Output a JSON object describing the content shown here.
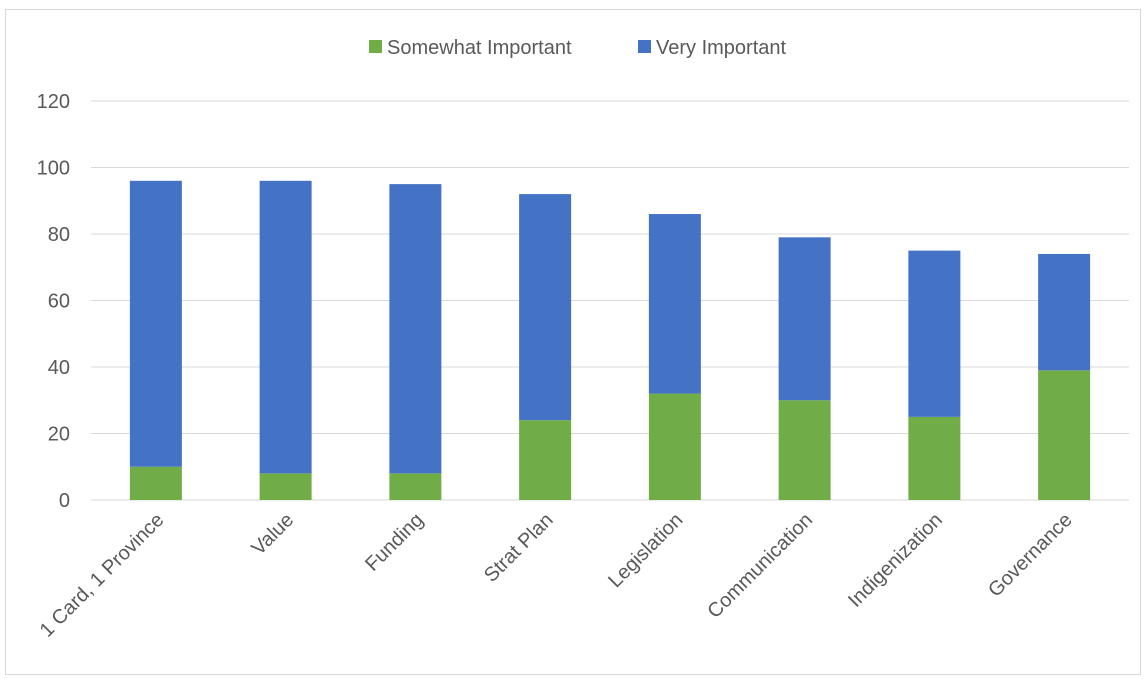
{
  "chart_data": {
    "type": "bar",
    "stacked": true,
    "categories": [
      "1 Card, 1 Province",
      "Value",
      "Funding",
      "Strat Plan",
      "Legislation",
      "Communication",
      "Indigenization",
      "Governance"
    ],
    "series": [
      {
        "name": "Somewhat Important",
        "color": "#70ad47",
        "values": [
          10,
          8,
          8,
          24,
          32,
          30,
          25,
          39
        ]
      },
      {
        "name": "Very Important",
        "color": "#4472c4",
        "values": [
          86,
          88,
          87,
          68,
          54,
          49,
          50,
          35
        ]
      }
    ],
    "ylim": [
      0,
      120
    ],
    "yticks": [
      0,
      20,
      40,
      60,
      80,
      100,
      120
    ],
    "grid": true,
    "legend_position": "top",
    "gridline_color": "#d9d9d9",
    "tick_label_color": "#595959"
  }
}
